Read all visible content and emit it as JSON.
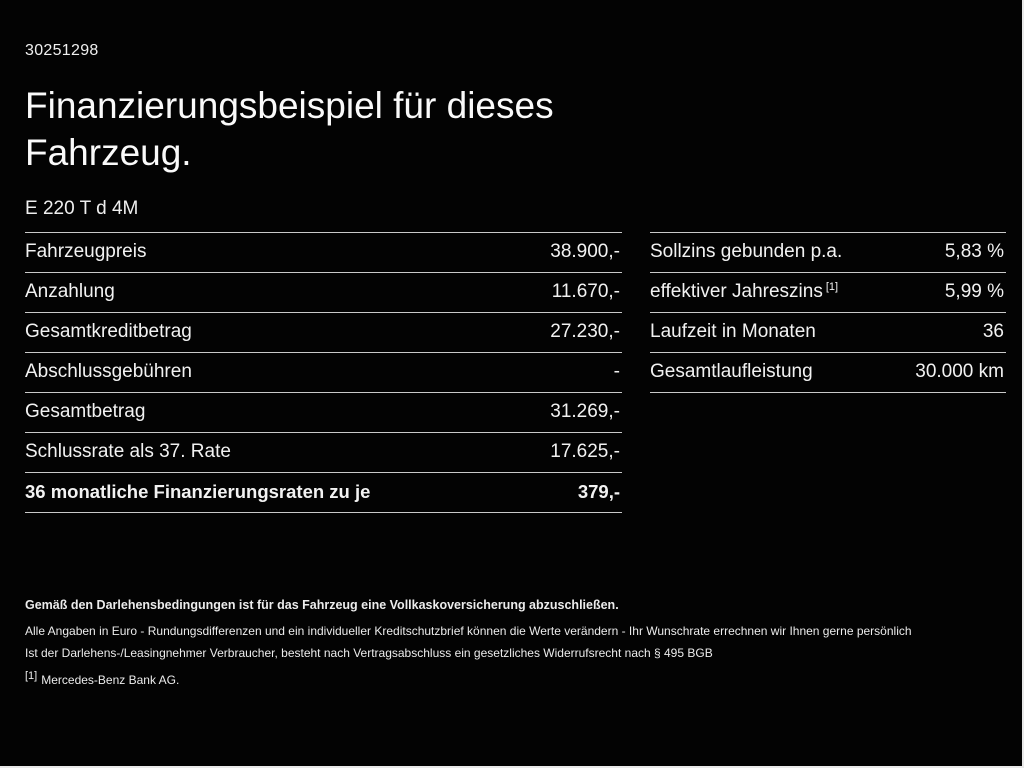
{
  "page": {
    "doc_number": "30251298",
    "title_line1": "Finanzierungsbeispiel für dieses",
    "title_line2": "Fahrzeug.",
    "model": "E 220 T d 4M"
  },
  "left_table": {
    "rows": [
      {
        "label": "Fahrzeugpreis",
        "value": "38.900,-"
      },
      {
        "label": "Anzahlung",
        "value": "11.670,-"
      },
      {
        "label": "Gesamtkreditbetrag",
        "value": "27.230,-"
      },
      {
        "label": "Abschlussgebühren",
        "value": "-"
      },
      {
        "label": "Gesamtbetrag",
        "value": "31.269,-"
      },
      {
        "label": "Schlussrate als 37. Rate",
        "value": "17.625,-"
      },
      {
        "label": "36 monatliche Finanzierungsraten zu je",
        "value": "379,-"
      }
    ]
  },
  "right_table": {
    "rows": [
      {
        "label": "Sollzins gebunden p.a.",
        "value": "5,83 %"
      },
      {
        "label": "effektiver Jahreszins",
        "marker": "[1]",
        "value": "5,99 %"
      },
      {
        "label": "Laufzeit in Monaten",
        "value": "36"
      },
      {
        "label": "Gesamtlaufleistung",
        "value": "30.000 km"
      }
    ]
  },
  "footer": {
    "line1": "Gemäß den Darlehensbedingungen ist für das Fahrzeug eine Vollkaskoversicherung abzuschließen.",
    "line2": "Alle Angaben in Euro - Rundungsdifferenzen und ein individueller Kreditschutzbrief können die Werte verändern - Ihr Wunschrate errechnen wir Ihnen gerne persönlich",
    "line3": "Ist der Darlehens-/Leasingnehmer Verbraucher, besteht nach Vertragsabschluss ein gesetzliches Widerrufsrecht nach § 495 BGB",
    "footnote_marker": "[1]",
    "footnote_text": "Mercedes-Benz Bank AG."
  },
  "colors": {
    "background": "#030303",
    "text": "#f2f2f2",
    "divider": "#c9c9c9"
  }
}
